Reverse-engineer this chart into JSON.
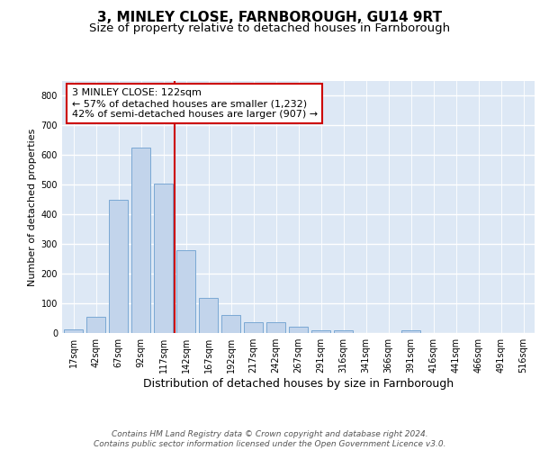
{
  "title1": "3, MINLEY CLOSE, FARNBOROUGH, GU14 9RT",
  "title2": "Size of property relative to detached houses in Farnborough",
  "xlabel": "Distribution of detached houses by size in Farnborough",
  "ylabel": "Number of detached properties",
  "bar_values": [
    12,
    55,
    450,
    625,
    505,
    280,
    118,
    62,
    35,
    35,
    20,
    10,
    8,
    0,
    0,
    8,
    0,
    0,
    0,
    0,
    0
  ],
  "bar_labels": [
    "17sqm",
    "42sqm",
    "67sqm",
    "92sqm",
    "117sqm",
    "142sqm",
    "167sqm",
    "192sqm",
    "217sqm",
    "242sqm",
    "267sqm",
    "291sqm",
    "316sqm",
    "341sqm",
    "366sqm",
    "391sqm",
    "416sqm",
    "441sqm",
    "466sqm",
    "491sqm",
    "516sqm"
  ],
  "bar_color": "#c2d4eb",
  "bar_edge_color": "#7aa8d4",
  "vline_color": "#cc0000",
  "annotation_line1": "3 MINLEY CLOSE: 122sqm",
  "annotation_line2": "← 57% of detached houses are smaller (1,232)",
  "annotation_line3": "42% of semi-detached houses are larger (907) →",
  "annotation_box_color": "white",
  "annotation_border_color": "#cc0000",
  "ylim": [
    0,
    850
  ],
  "yticks": [
    0,
    100,
    200,
    300,
    400,
    500,
    600,
    700,
    800
  ],
  "footer": "Contains HM Land Registry data © Crown copyright and database right 2024.\nContains public sector information licensed under the Open Government Licence v3.0.",
  "bg_color": "#dde8f5",
  "title1_fontsize": 11,
  "title2_fontsize": 9.5,
  "ylabel_fontsize": 8,
  "xlabel_fontsize": 9,
  "tick_fontsize": 7,
  "annotation_fontsize": 8,
  "footer_fontsize": 6.5
}
